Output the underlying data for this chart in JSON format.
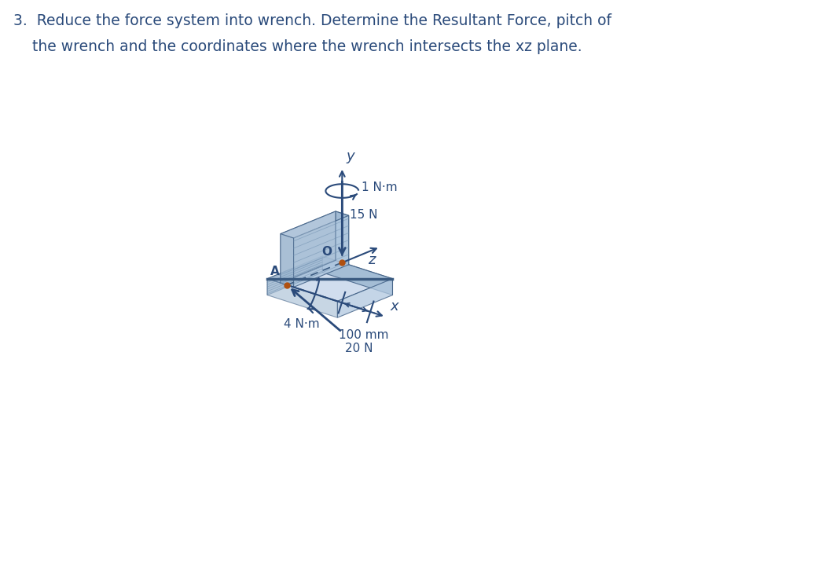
{
  "title_line1": "3.  Reduce the force system into wrench. Determine the Resultant Force, pitch of",
  "title_line2": "    the wrench and the coordinates where the wrench intersects the xz plane.",
  "title_fontsize": 13.5,
  "title_color": "#2a4a7a",
  "bg_color": "#ffffff",
  "face_top": "#c8d8eb",
  "face_front": "#9ab5cf",
  "face_right": "#b0c8e0",
  "face_left": "#a0b8d0",
  "edge_color": "#3a5a80",
  "label_color": "#2a4a7a",
  "arrow_color": "#2a4a7a",
  "hatch_color": "#7090b0",
  "figsize": [
    10.37,
    7.14
  ],
  "dpi": 100,
  "ox": 4.35,
  "oy": 3.8,
  "ix": [
    0.28,
    -0.09
  ],
  "iy": [
    0.0,
    0.38
  ],
  "iz": [
    -0.22,
    -0.09
  ]
}
